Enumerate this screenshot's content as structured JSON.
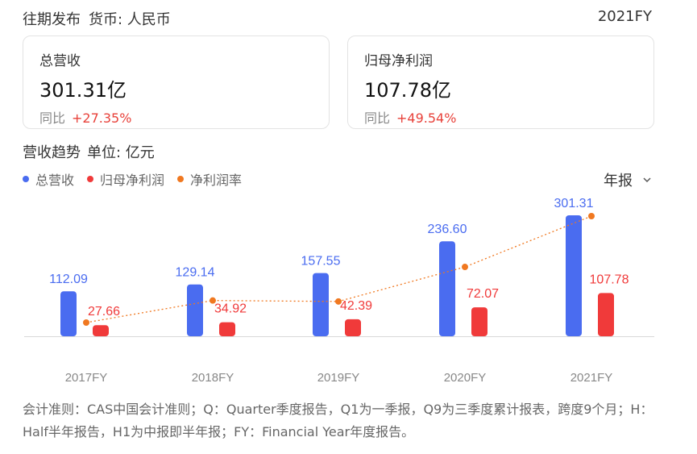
{
  "header": {
    "title": "往期发布",
    "currency": "货币: 人民币",
    "period_label": "2021FY"
  },
  "cards": [
    {
      "label": "总营收",
      "value": "301.31亿",
      "yoy_label": "同比",
      "yoy_value": "+27.35%"
    },
    {
      "label": "归母净利润",
      "value": "107.78亿",
      "yoy_label": "同比",
      "yoy_value": "+49.54%"
    }
  ],
  "trend": {
    "title": "营收趋势",
    "unit": "单位: 亿元",
    "period_select": "年报"
  },
  "legend": [
    {
      "label": "总营收",
      "color": "#4a6cf0"
    },
    {
      "label": "归母净利润",
      "color": "#f03a3a"
    },
    {
      "label": "净利润率",
      "color": "#f07820"
    }
  ],
  "chart_data": {
    "type": "bar",
    "categories": [
      "2017FY",
      "2018FY",
      "2019FY",
      "2020FY",
      "2021FY"
    ],
    "series": [
      {
        "name": "总营收",
        "type": "bar",
        "color": "#4a6cf0",
        "values": [
          112.09,
          129.14,
          157.55,
          236.6,
          301.31
        ],
        "labels": [
          "112.09",
          "129.14",
          "157.55",
          "236.60",
          "301.31"
        ]
      },
      {
        "name": "归母净利润",
        "type": "bar",
        "color": "#f03a3a",
        "values": [
          27.66,
          34.92,
          42.39,
          72.07,
          107.78
        ],
        "labels": [
          "27.66",
          "34.92",
          "42.39",
          "72.07",
          "107.78"
        ]
      },
      {
        "name": "净利润率",
        "type": "line",
        "color": "#f07820",
        "values": [
          24.7,
          27.0,
          26.9,
          30.5,
          35.8
        ]
      }
    ]
  },
  "footnote": "会计准则：CAS中国会计准则；Q：Quarter季度报告，Q1为一季报，Q9为三季度累计报表，跨度9个月；H：Half半年报告，H1为中报即半年报；FY：Financial Year年度报告。"
}
